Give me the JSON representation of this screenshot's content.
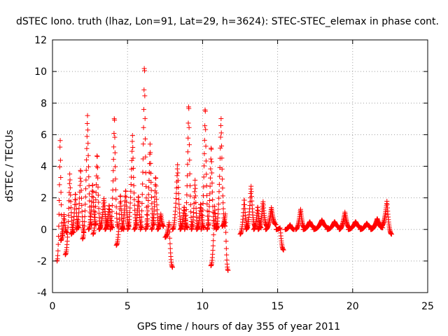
{
  "chart_data": {
    "type": "scatter",
    "title": "dSTEC Iono. truth (lhaz, Lon=91, Lat=29, h=3624): STEC-STEC_elemax in phase cont.",
    "xlabel": "GPS time / hours of day 355 of year 2011",
    "ylabel": "dSTEC  / TECUs",
    "xlim": [
      0,
      25
    ],
    "ylim": [
      -4,
      12
    ],
    "xticks": [
      "0",
      "5",
      "10",
      "15",
      "20",
      "25"
    ],
    "yticks": [
      "-4",
      "-2",
      "0",
      "2",
      "4",
      "6",
      "8",
      "10",
      "12"
    ],
    "grid": true,
    "marker": "+",
    "colors": {
      "series": "#ff0000",
      "grid": "#a0a0a0",
      "axis": "#000000"
    },
    "arcs": [
      {
        "t0": 0.3,
        "t1": 0.68,
        "y0": -2.0,
        "peak": 6.1,
        "y1": -0.4
      },
      {
        "t0": 0.55,
        "t1": 0.95,
        "y0": -0.7,
        "peak": 1.0,
        "y1": -0.2
      },
      {
        "t0": 0.85,
        "t1": 1.4,
        "y0": -1.6,
        "peak": 3.6,
        "y1": -0.2
      },
      {
        "t0": 1.25,
        "t1": 1.75,
        "y0": -0.3,
        "peak": 2.4,
        "y1": 0.1
      },
      {
        "t0": 1.6,
        "t1": 2.1,
        "y0": 0.0,
        "peak": 4.0,
        "y1": -0.2
      },
      {
        "t0": 2.0,
        "t1": 2.6,
        "y0": -0.6,
        "peak": 7.4,
        "y1": 0.3
      },
      {
        "t0": 2.4,
        "t1": 2.9,
        "y0": 0.0,
        "peak": 3.0,
        "y1": 0.3
      },
      {
        "t0": 2.7,
        "t1": 3.2,
        "y0": -0.3,
        "peak": 5.0,
        "y1": 0.2
      },
      {
        "t0": 3.1,
        "t1": 3.7,
        "y0": 0.0,
        "peak": 2.0,
        "y1": 0.2
      },
      {
        "t0": 3.5,
        "t1": 4.0,
        "y0": 0.0,
        "peak": 1.6,
        "y1": 0.1
      },
      {
        "t0": 3.85,
        "t1": 4.35,
        "y0": 0.0,
        "peak": 7.5,
        "y1": 0.2
      },
      {
        "t0": 4.25,
        "t1": 4.75,
        "y0": -1.0,
        "peak": 2.3,
        "y1": 0.0
      },
      {
        "t0": 4.6,
        "t1": 5.1,
        "y0": 0.0,
        "peak": 2.6,
        "y1": 0.2
      },
      {
        "t0": 5.0,
        "t1": 5.6,
        "y0": 0.0,
        "peak": 6.1,
        "y1": 0.3
      },
      {
        "t0": 5.45,
        "t1": 5.95,
        "y0": 0.0,
        "peak": 2.2,
        "y1": 0.1
      },
      {
        "t0": 5.85,
        "t1": 6.35,
        "y0": 0.0,
        "peak": 10.9,
        "y1": 0.2
      },
      {
        "t0": 6.2,
        "t1": 6.75,
        "y0": 0.0,
        "peak": 5.5,
        "y1": 0.3
      },
      {
        "t0": 6.6,
        "t1": 7.1,
        "y0": 0.0,
        "peak": 3.5,
        "y1": 0.2
      },
      {
        "t0": 7.0,
        "t1": 7.4,
        "y0": 0.0,
        "peak": 1.0,
        "y1": 0.2
      },
      {
        "t0": 7.5,
        "t1": 8.0,
        "y0": -0.5,
        "peak": 0.5,
        "y1": -2.4
      },
      {
        "t0": 8.0,
        "t1": 8.6,
        "y0": 0.0,
        "peak": 4.2,
        "y1": 0.2
      },
      {
        "t0": 8.5,
        "t1": 9.0,
        "y0": 0.0,
        "peak": 1.5,
        "y1": 0.1
      },
      {
        "t0": 8.8,
        "t1": 9.3,
        "y0": 0.0,
        "peak": 8.3,
        "y1": 0.2
      },
      {
        "t0": 9.25,
        "t1": 9.7,
        "y0": 0.0,
        "peak": 3.2,
        "y1": 0.1
      },
      {
        "t0": 9.6,
        "t1": 10.1,
        "y0": 0.0,
        "peak": 1.7,
        "y1": 0.1
      },
      {
        "t0": 9.9,
        "t1": 10.4,
        "y0": 0.0,
        "peak": 8.1,
        "y1": 0.3
      },
      {
        "t0": 10.3,
        "t1": 10.8,
        "y0": 0.0,
        "peak": 5.5,
        "y1": 0.2
      },
      {
        "t0": 10.55,
        "t1": 11.0,
        "y0": -2.3,
        "peak": 1.5,
        "y1": 0.1
      },
      {
        "t0": 10.9,
        "t1": 11.5,
        "y0": 0.0,
        "peak": 7.2,
        "y1": 0.2
      },
      {
        "t0": 11.3,
        "t1": 11.7,
        "y0": 0.2,
        "peak": 1.0,
        "y1": -2.6
      },
      {
        "t0": 12.5,
        "t1": 13.0,
        "y0": -0.3,
        "peak": 2.0,
        "y1": 0.1
      },
      {
        "t0": 12.9,
        "t1": 13.5,
        "y0": 0.0,
        "peak": 2.8,
        "y1": 0.2
      },
      {
        "t0": 13.4,
        "t1": 13.9,
        "y0": 0.0,
        "peak": 1.5,
        "y1": 0.1
      },
      {
        "t0": 13.7,
        "t1": 14.3,
        "y0": 0.0,
        "peak": 1.8,
        "y1": 0.2
      },
      {
        "t0": 14.2,
        "t1": 14.9,
        "y0": 0.0,
        "peak": 1.4,
        "y1": 0.3
      },
      {
        "t0": 14.9,
        "t1": 15.4,
        "y0": 0.0,
        "peak": 0.1,
        "y1": -1.3
      },
      {
        "t0": 15.5,
        "t1": 16.1,
        "y0": 0.0,
        "peak": 0.3,
        "y1": 0.0
      },
      {
        "t0": 16.2,
        "t1": 16.8,
        "y0": 0.0,
        "peak": 1.3,
        "y1": 0.1
      },
      {
        "t0": 16.7,
        "t1": 17.5,
        "y0": 0.0,
        "peak": 0.5,
        "y1": 0.1
      },
      {
        "t0": 17.4,
        "t1": 18.4,
        "y0": 0.0,
        "peak": 0.6,
        "y1": 0.1
      },
      {
        "t0": 18.3,
        "t1": 19.2,
        "y0": 0.0,
        "peak": 0.5,
        "y1": 0.1
      },
      {
        "t0": 19.1,
        "t1": 19.8,
        "y0": 0.0,
        "peak": 1.1,
        "y1": 0.1
      },
      {
        "t0": 19.7,
        "t1": 20.6,
        "y0": 0.0,
        "peak": 0.5,
        "y1": 0.1
      },
      {
        "t0": 20.5,
        "t1": 21.3,
        "y0": 0.0,
        "peak": 0.4,
        "y1": 0.1
      },
      {
        "t0": 21.2,
        "t1": 22.0,
        "y0": 0.0,
        "peak": 0.7,
        "y1": 0.1
      },
      {
        "t0": 21.9,
        "t1": 22.6,
        "y0": 0.2,
        "peak": 1.8,
        "y1": -0.3
      }
    ]
  }
}
